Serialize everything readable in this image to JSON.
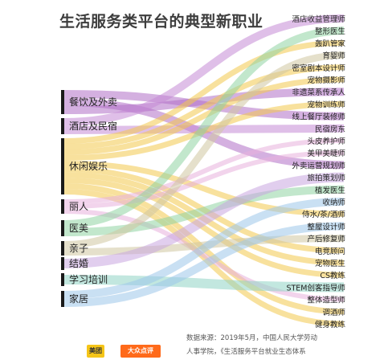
{
  "title": "生活服务类平台的典型新职业",
  "source_line1": "数据来源：2019年5月，中国人民大学劳动",
  "source_line2": "人事学院，《生活服务平台就业生态体系",
  "logos": [
    "美团",
    "大众点评"
  ],
  "diagram": {
    "sources": [
      {
        "name": "餐饮及外卖",
        "color": "#b06fc7"
      },
      {
        "name": "酒店及民宿",
        "color": "#c48ad6"
      },
      {
        "name": "休闲娱乐",
        "color": "#f2c94c"
      },
      {
        "name": "丽人",
        "color": "#e7b0dc"
      },
      {
        "name": "医美",
        "color": "#8fd3a3"
      },
      {
        "name": "亲子",
        "color": "#cfc7a0"
      },
      {
        "name": "结婚",
        "color": "#c9a6e0"
      },
      {
        "name": "学习培训",
        "color": "#8fd3c5"
      },
      {
        "name": "家居",
        "color": "#9cc7ea"
      }
    ],
    "targets": [
      "酒店收益管理师",
      "整形医生",
      "轰趴管家",
      "育婴师",
      "密室剧本设计师",
      "宠物摄影师",
      "非遗菜系传承人",
      "宠物训练师",
      "线上餐厅装修师",
      "民宿房东",
      "头皮养护师",
      "美甲美睫师",
      "外卖运营规划师",
      "旅拍策划师",
      "植发医生",
      "收纳师",
      "侍水/茶/酒师",
      "整屋设计师",
      "产后修复师",
      "电竞顾问",
      "宠物医生",
      "CS教练",
      "STEM创客指导师",
      "整体造型师",
      "调酒师",
      "健身教练"
    ],
    "flows": [
      {
        "source": "餐饮及外卖",
        "target": "线上餐厅装修师"
      },
      {
        "source": "餐饮及外卖",
        "target": "外卖运营规划师"
      },
      {
        "source": "餐饮及外卖",
        "target": "非遗菜系传承人"
      },
      {
        "source": "酒店及民宿",
        "target": "酒店收益管理师"
      },
      {
        "source": "酒店及民宿",
        "target": "民宿房东"
      },
      {
        "source": "休闲娱乐",
        "target": "轰趴管家"
      },
      {
        "source": "休闲娱乐",
        "target": "密室剧本设计师"
      },
      {
        "source": "休闲娱乐",
        "target": "宠物摄影师"
      },
      {
        "source": "休闲娱乐",
        "target": "宠物训练师"
      },
      {
        "source": "休闲娱乐",
        "target": "侍水/茶/酒师"
      },
      {
        "source": "休闲娱乐",
        "target": "电竞顾问"
      },
      {
        "source": "休闲娱乐",
        "target": "宠物医生"
      },
      {
        "source": "休闲娱乐",
        "target": "CS教练"
      },
      {
        "source": "休闲娱乐",
        "target": "调酒师"
      },
      {
        "source": "休闲娱乐",
        "target": "健身教练"
      },
      {
        "source": "丽人",
        "target": "头皮养护师"
      },
      {
        "source": "丽人",
        "target": "美甲美睫师"
      },
      {
        "source": "丽人",
        "target": "整体造型师"
      },
      {
        "source": "医美",
        "target": "整形医生"
      },
      {
        "source": "医美",
        "target": "植发医生"
      },
      {
        "source": "亲子",
        "target": "育婴师"
      },
      {
        "source": "亲子",
        "target": "产后修复师"
      },
      {
        "source": "结婚",
        "target": "旅拍策划师"
      },
      {
        "source": "学习培训",
        "target": "STEM创客指导师"
      },
      {
        "source": "家居",
        "target": "收纳师"
      },
      {
        "source": "家居",
        "target": "整屋设计师"
      }
    ]
  }
}
